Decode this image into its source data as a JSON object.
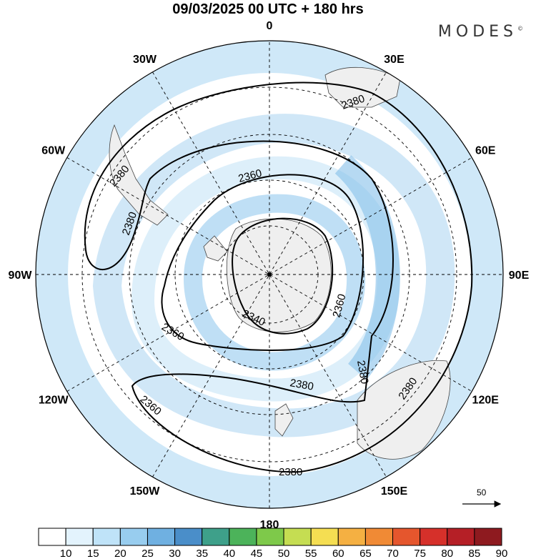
{
  "title": "09/03/2025  00 UTC  + 180 hrs",
  "brand": "MODES",
  "brand_mark": "©",
  "longitude_labels": [
    {
      "text": "0",
      "lon": 0
    },
    {
      "text": "30E",
      "lon": 30
    },
    {
      "text": "60E",
      "lon": 60
    },
    {
      "text": "90E",
      "lon": 90
    },
    {
      "text": "120E",
      "lon": 120
    },
    {
      "text": "150E",
      "lon": 150
    },
    {
      "text": "180",
      "lon": 180
    },
    {
      "text": "150W",
      "lon": -150
    },
    {
      "text": "120W",
      "lon": -120
    },
    {
      "text": "90W",
      "lon": -90
    },
    {
      "text": "60W",
      "lon": -60
    },
    {
      "text": "30W",
      "lon": -30
    }
  ],
  "contour_levels": [
    "2340",
    "2360",
    "2380"
  ],
  "contour_labels": [
    "2380",
    "2380",
    "2380",
    "2380",
    "2380",
    "2380",
    "2380",
    "2360",
    "2360",
    "2360",
    "2360",
    "2340"
  ],
  "colorbar": {
    "labels": [
      "10",
      "15",
      "20",
      "25",
      "30",
      "35",
      "40",
      "45",
      "50",
      "55",
      "60",
      "65",
      "70",
      "75",
      "80",
      "85",
      "90"
    ],
    "colors": [
      "#ffffff",
      "#e3f3fd",
      "#bfe3f8",
      "#98cdef",
      "#6fb0e1",
      "#4a8ec9",
      "#3ea08a",
      "#4cb35a",
      "#7ec94a",
      "#c5dd52",
      "#f5de52",
      "#f5b042",
      "#f08a35",
      "#e5562d",
      "#d6302a",
      "#b51f26",
      "#8e1a1f"
    ]
  },
  "reference_vector": {
    "label": "50"
  },
  "colors": {
    "shade_light": "#cfe8f8",
    "shade_mid": "#a9d4f1",
    "shade_strong": "#86bfe9",
    "land": "#f0f0f0",
    "contour": "#000000"
  }
}
